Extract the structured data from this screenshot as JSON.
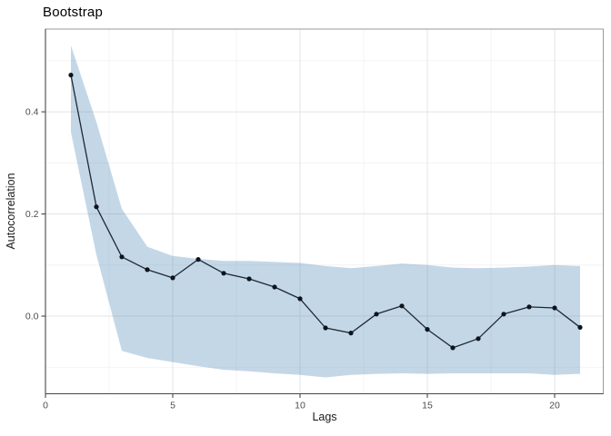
{
  "chart_data": {
    "type": "line",
    "title": "Bootstrap",
    "xlabel": "Lags",
    "ylabel": "Autocorrelation",
    "x": [
      1,
      2,
      3,
      4,
      5,
      6,
      7,
      8,
      9,
      10,
      11,
      12,
      13,
      14,
      15,
      16,
      17,
      18,
      19,
      20,
      21
    ],
    "series": [
      {
        "name": "autocorrelation",
        "values": [
          0.472,
          0.214,
          0.116,
          0.091,
          0.075,
          0.111,
          0.084,
          0.073,
          0.057,
          0.034,
          -0.023,
          -0.033,
          0.004,
          0.02,
          -0.026,
          -0.062,
          -0.044,
          0.004,
          0.018,
          0.016,
          -0.022
        ]
      }
    ],
    "band": {
      "name": "bootstrap-confidence-band",
      "upper": [
        0.53,
        0.38,
        0.21,
        0.136,
        0.118,
        0.112,
        0.108,
        0.108,
        0.106,
        0.104,
        0.098,
        0.094,
        0.098,
        0.103,
        0.1,
        0.095,
        0.094,
        0.095,
        0.097,
        0.1,
        0.098
      ],
      "lower": [
        0.36,
        0.12,
        -0.068,
        -0.082,
        -0.09,
        -0.098,
        -0.105,
        -0.108,
        -0.112,
        -0.115,
        -0.12,
        -0.115,
        -0.113,
        -0.112,
        -0.113,
        -0.112,
        -0.112,
        -0.112,
        -0.112,
        -0.115,
        -0.113
      ]
    },
    "xlim": [
      0,
      21.91
    ],
    "ylim": [
      -0.152,
      0.562
    ],
    "x_ticks": {
      "values": [
        0,
        5,
        10,
        15,
        20
      ],
      "labels": [
        "0",
        "5",
        "10",
        "15",
        "20"
      ]
    },
    "y_ticks": {
      "values": [
        0.0,
        0.2,
        0.4
      ],
      "labels": [
        "0.0",
        "0.2",
        "0.4"
      ]
    },
    "x_minor": [
      2.5,
      7.5,
      12.5,
      17.5
    ],
    "y_minor": [
      -0.1,
      0.1,
      0.3,
      0.5
    ],
    "grid": "on",
    "legend": "none",
    "colors": {
      "band": "rgba(70,130,180,0.32)",
      "line": "#1c2836",
      "point": "#0d141c",
      "grid_major": "#e4e4e4",
      "grid_minor": "#f1f1f1",
      "panel_border": "#9a9a9a",
      "axis": "#474747",
      "tick_label": "#4d4d4d",
      "background": "#ffffff"
    }
  }
}
